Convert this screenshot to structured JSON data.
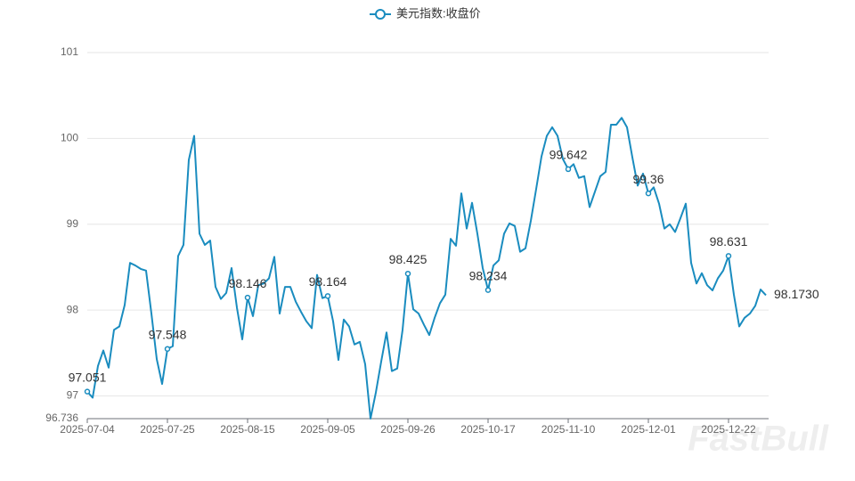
{
  "chart_data": {
    "type": "line",
    "legend_position": "top",
    "watermark": "FastBull",
    "ylim": [
      96.736,
      101
    ],
    "yticks": [
      96.736,
      97,
      98,
      99,
      100,
      101
    ],
    "grid": true,
    "categories": [
      "2025-07-04",
      null,
      null,
      null,
      null,
      null,
      null,
      null,
      null,
      null,
      null,
      null,
      null,
      null,
      null,
      "2025-07-25",
      null,
      null,
      null,
      null,
      null,
      null,
      null,
      null,
      null,
      null,
      null,
      null,
      null,
      null,
      "2025-08-15",
      null,
      null,
      null,
      null,
      null,
      null,
      null,
      null,
      null,
      null,
      null,
      null,
      null,
      null,
      "2025-09-05",
      null,
      null,
      null,
      null,
      null,
      null,
      null,
      null,
      null,
      null,
      null,
      null,
      null,
      null,
      "2025-09-26",
      null,
      null,
      null,
      null,
      null,
      null,
      null,
      null,
      null,
      null,
      null,
      null,
      null,
      null,
      "2025-10-17",
      null,
      null,
      null,
      null,
      null,
      null,
      null,
      null,
      null,
      null,
      null,
      null,
      null,
      null,
      "2025-11-10",
      null,
      null,
      null,
      null,
      null,
      null,
      null,
      null,
      null,
      null,
      null,
      null,
      null,
      null,
      "2025-12-01",
      null,
      null,
      null,
      null,
      null,
      null,
      null,
      null,
      null,
      null,
      null,
      null,
      null,
      null,
      "2025-12-22",
      null,
      null,
      null,
      null,
      null,
      null,
      null
    ],
    "series": [
      {
        "name": "美元指数:收盘价",
        "color": "#1a8cbf",
        "values": [
          97.051,
          96.98,
          97.35,
          97.53,
          97.33,
          97.77,
          97.81,
          98.06,
          98.55,
          98.52,
          98.48,
          98.46,
          97.96,
          97.43,
          97.14,
          97.548,
          97.58,
          98.63,
          98.76,
          99.75,
          100.03,
          98.89,
          98.76,
          98.81,
          98.27,
          98.13,
          98.2,
          98.49,
          98.03,
          97.66,
          98.146,
          97.93,
          98.29,
          98.31,
          98.37,
          98.62,
          97.96,
          98.27,
          98.27,
          98.1,
          97.98,
          97.87,
          97.79,
          98.41,
          98.14,
          98.164,
          97.87,
          97.42,
          97.89,
          97.81,
          97.6,
          97.63,
          97.37,
          96.736,
          97.04,
          97.4,
          97.74,
          97.29,
          97.32,
          97.77,
          98.425,
          98.01,
          97.96,
          97.83,
          97.71,
          97.91,
          98.08,
          98.18,
          98.83,
          98.75,
          99.36,
          98.95,
          99.25,
          98.89,
          98.49,
          98.234,
          98.52,
          98.58,
          98.89,
          99.01,
          98.98,
          98.68,
          98.72,
          99.04,
          99.41,
          99.79,
          100.03,
          100.13,
          100.03,
          99.76,
          99.642,
          99.7,
          99.54,
          99.56,
          99.2,
          99.38,
          99.56,
          99.61,
          100.16,
          100.16,
          100.24,
          100.13,
          99.78,
          99.45,
          99.59,
          99.36,
          99.43,
          99.24,
          98.95,
          99.0,
          98.91,
          99.07,
          99.24,
          98.55,
          98.31,
          98.43,
          98.29,
          98.23,
          98.37,
          98.46,
          98.631,
          98.18,
          97.81,
          97.91,
          97.96,
          98.05,
          98.24,
          98.173
        ],
        "value_labels": [
          "97.051",
          null,
          null,
          null,
          null,
          null,
          null,
          null,
          null,
          null,
          null,
          null,
          null,
          null,
          null,
          "97.548",
          null,
          null,
          null,
          null,
          null,
          null,
          null,
          null,
          null,
          null,
          null,
          null,
          null,
          null,
          "98.146",
          null,
          null,
          null,
          null,
          null,
          null,
          null,
          null,
          null,
          null,
          null,
          null,
          null,
          null,
          "98.164",
          null,
          null,
          null,
          null,
          null,
          null,
          null,
          null,
          null,
          null,
          null,
          null,
          null,
          null,
          "98.425",
          null,
          null,
          null,
          null,
          null,
          null,
          null,
          null,
          null,
          null,
          null,
          null,
          null,
          null,
          "98.234",
          null,
          null,
          null,
          null,
          null,
          null,
          null,
          null,
          null,
          null,
          null,
          null,
          null,
          null,
          "99.642",
          null,
          null,
          null,
          null,
          null,
          null,
          null,
          null,
          null,
          null,
          null,
          null,
          null,
          null,
          "99.36",
          null,
          null,
          null,
          null,
          null,
          null,
          null,
          null,
          null,
          null,
          null,
          null,
          null,
          null,
          "98.631",
          null,
          null,
          null,
          null,
          null,
          null,
          "98.1730"
        ]
      }
    ]
  }
}
